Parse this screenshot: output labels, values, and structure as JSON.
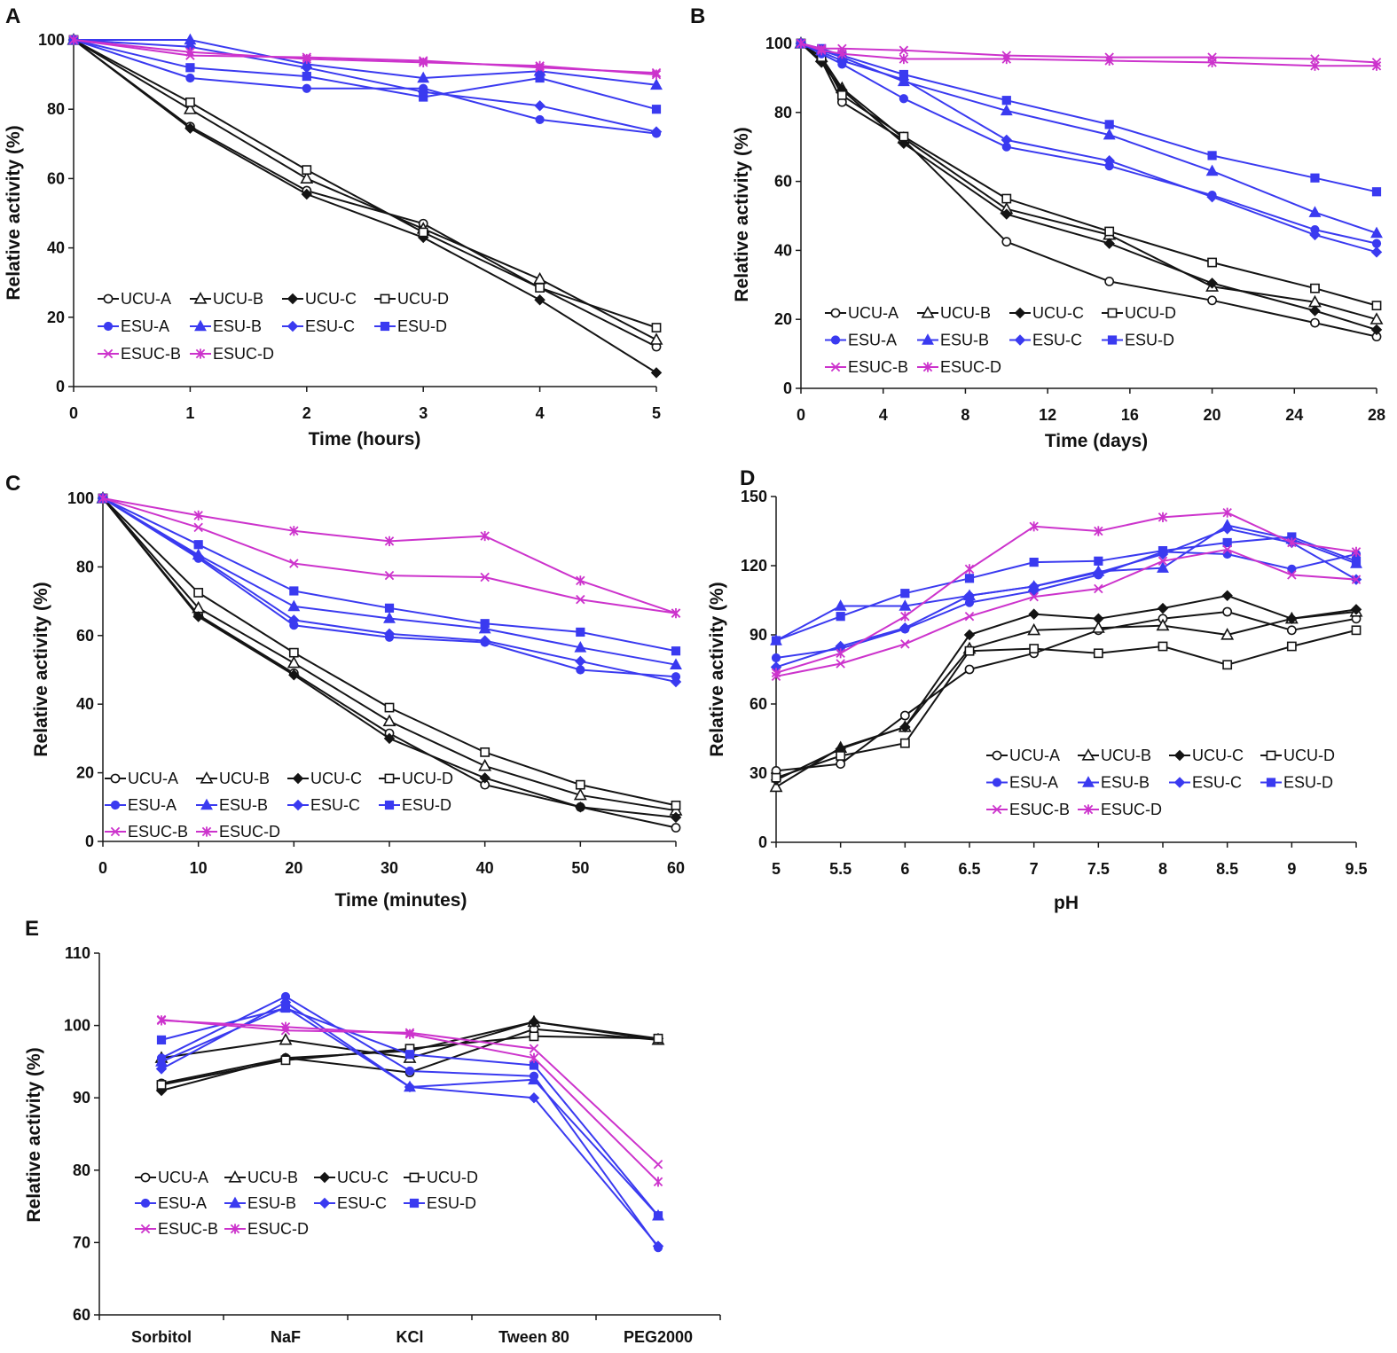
{
  "chart_data": [
    {
      "panel": "A",
      "type": "line",
      "xlabel": "Time (hours)",
      "ylabel": "Relative activity (%)",
      "x": [
        0,
        1,
        2,
        3,
        4,
        5
      ],
      "xlim": [
        0,
        5
      ],
      "ylim": [
        0,
        100
      ],
      "xticks": [
        0,
        1,
        2,
        3,
        4,
        5
      ],
      "yticks": [
        0,
        20,
        40,
        60,
        80,
        100
      ],
      "legend": "lower-left",
      "series": [
        {
          "name": "UCU-A",
          "values": [
            100,
            75,
            56.5,
            47,
            28.5,
            11.5
          ]
        },
        {
          "name": "UCU-B",
          "values": [
            100,
            80,
            60,
            45.5,
            31,
            13.5
          ]
        },
        {
          "name": "UCU-C",
          "values": [
            100,
            74.5,
            55.5,
            43,
            25,
            4
          ]
        },
        {
          "name": "UCU-D",
          "values": [
            100,
            82,
            62.5,
            44.5,
            28.5,
            17
          ]
        },
        {
          "name": "ESU-A",
          "values": [
            100,
            89,
            86,
            86,
            77,
            73
          ]
        },
        {
          "name": "ESU-B",
          "values": [
            100,
            100,
            93,
            89,
            91,
            87
          ]
        },
        {
          "name": "ESU-C",
          "values": [
            100,
            98,
            92,
            85,
            81,
            73.5
          ]
        },
        {
          "name": "ESU-D",
          "values": [
            100,
            92,
            89.5,
            83.5,
            89,
            80
          ]
        },
        {
          "name": "ESUC-B",
          "values": [
            100,
            95.5,
            95,
            94,
            92,
            90.5
          ]
        },
        {
          "name": "ESUC-D",
          "values": [
            100,
            96.5,
            94.5,
            93.5,
            92.5,
            90
          ]
        }
      ]
    },
    {
      "panel": "B",
      "type": "line",
      "xlabel": "Time (days)",
      "ylabel": "Relative activity (%)",
      "x": [
        0,
        1,
        2,
        5,
        10,
        15,
        20,
        25,
        28
      ],
      "xlim": [
        0,
        28
      ],
      "ylim": [
        0,
        100
      ],
      "xticks": [
        0,
        4,
        8,
        12,
        16,
        20,
        24,
        28
      ],
      "yticks": [
        0,
        20,
        40,
        60,
        80,
        100
      ],
      "legend": "lower-left",
      "series": [
        {
          "name": "UCU-A",
          "values": [
            100,
            95,
            83,
            72,
            42.5,
            31,
            25.5,
            19,
            15
          ]
        },
        {
          "name": "UCU-B",
          "values": [
            100,
            96,
            87,
            72.5,
            52,
            44.5,
            29.5,
            25,
            20
          ]
        },
        {
          "name": "UCU-C",
          "values": [
            100,
            94.5,
            86.5,
            71,
            50.5,
            42,
            30.5,
            22.5,
            17
          ]
        },
        {
          "name": "UCU-D",
          "values": [
            100,
            96,
            85,
            73,
            55,
            45.5,
            36.5,
            29,
            24
          ]
        },
        {
          "name": "ESU-A",
          "values": [
            100,
            97,
            94,
            84,
            70,
            64.5,
            56,
            46,
            42
          ]
        },
        {
          "name": "ESU-B",
          "values": [
            100,
            98,
            96,
            89,
            80.5,
            73.5,
            63,
            51,
            45
          ]
        },
        {
          "name": "ESU-C",
          "values": [
            100,
            97.5,
            95,
            89.5,
            72,
            66,
            55.5,
            44.5,
            39.5
          ]
        },
        {
          "name": "ESU-D",
          "values": [
            100,
            98.5,
            96.5,
            91,
            83.5,
            76.5,
            67.5,
            61,
            57
          ]
        },
        {
          "name": "ESUC-B",
          "values": [
            100,
            98.5,
            98.5,
            98,
            96.5,
            96,
            96,
            95.5,
            94.5
          ]
        },
        {
          "name": "ESUC-D",
          "values": [
            100,
            98,
            97,
            95.5,
            95.5,
            95,
            94.5,
            93.5,
            93.5
          ]
        }
      ]
    },
    {
      "panel": "C",
      "type": "line",
      "xlabel": "Time (minutes)",
      "ylabel": "Relative activity (%)",
      "x": [
        0,
        10,
        20,
        30,
        40,
        50,
        60
      ],
      "xlim": [
        0,
        60
      ],
      "ylim": [
        0,
        100
      ],
      "xticks": [
        0,
        10,
        20,
        30,
        40,
        50,
        60
      ],
      "yticks": [
        0,
        20,
        40,
        60,
        80,
        100
      ],
      "legend": "lower-left",
      "series": [
        {
          "name": "UCU-A",
          "values": [
            100,
            66,
            49,
            31.5,
            16.5,
            10,
            4
          ]
        },
        {
          "name": "UCU-B",
          "values": [
            100,
            68,
            52,
            35,
            22,
            13.5,
            9
          ]
        },
        {
          "name": "UCU-C",
          "values": [
            100,
            65.5,
            48.5,
            30,
            18.5,
            10,
            7
          ]
        },
        {
          "name": "UCU-D",
          "values": [
            100,
            72.5,
            55,
            39,
            26,
            16.5,
            10.5
          ]
        },
        {
          "name": "ESU-A",
          "values": [
            100,
            82.5,
            63,
            59.5,
            58,
            50,
            48
          ]
        },
        {
          "name": "ESU-B",
          "values": [
            100,
            83.5,
            68.5,
            65,
            62,
            56.5,
            51.5
          ]
        },
        {
          "name": "ESU-C",
          "values": [
            100,
            83,
            64.5,
            60.5,
            58.5,
            52.5,
            46.5
          ]
        },
        {
          "name": "ESU-D",
          "values": [
            100,
            86.5,
            73,
            68,
            63.5,
            61,
            55.5
          ]
        },
        {
          "name": "ESUC-B",
          "values": [
            100,
            91.5,
            81,
            77.5,
            77,
            70.5,
            66.5
          ]
        },
        {
          "name": "ESUC-D",
          "values": [
            100,
            95,
            90.5,
            87.5,
            89,
            76,
            66.5
          ]
        }
      ]
    },
    {
      "panel": "D",
      "type": "line",
      "xlabel": "pH",
      "ylabel": "Relative activity (%)",
      "x": [
        5,
        5.5,
        6,
        6.5,
        7,
        7.5,
        8,
        8.5,
        9,
        9.5
      ],
      "xlim": [
        5,
        9.5
      ],
      "ylim": [
        0,
        150
      ],
      "xticks": [
        5,
        5.5,
        6,
        6.5,
        7,
        7.5,
        8,
        8.5,
        9,
        9.5
      ],
      "yticks": [
        0,
        30,
        60,
        90,
        120,
        150
      ],
      "legend": "lower-right",
      "series": [
        {
          "name": "UCU-A",
          "values": [
            31,
            34,
            55,
            75,
            82,
            92,
            97,
            100,
            92,
            97
          ]
        },
        {
          "name": "UCU-B",
          "values": [
            24,
            41,
            50,
            84,
            92,
            93,
            94,
            90,
            97,
            100
          ]
        },
        {
          "name": "UCU-C",
          "values": [
            27,
            40.5,
            50,
            90,
            99,
            97,
            101.5,
            107,
            97,
            101
          ]
        },
        {
          "name": "UCU-D",
          "values": [
            28,
            37.5,
            43,
            83,
            84,
            82,
            85,
            77,
            85,
            92
          ]
        },
        {
          "name": "ESU-A",
          "values": [
            80,
            84,
            92.5,
            104,
            109,
            116,
            126,
            125,
            118.5,
            125
          ]
        },
        {
          "name": "ESU-B",
          "values": [
            87.5,
            102.5,
            102.5,
            107,
            111,
            117.5,
            119,
            137.5,
            131.5,
            121
          ]
        },
        {
          "name": "ESU-C",
          "values": [
            76,
            85,
            93,
            107,
            111,
            117,
            125,
            136,
            130,
            114
          ]
        },
        {
          "name": "ESU-D",
          "values": [
            87.5,
            98,
            108,
            114.5,
            121.5,
            122,
            126.5,
            130,
            132.5,
            122
          ]
        },
        {
          "name": "ESUC-B",
          "values": [
            72,
            77.5,
            86,
            98,
            106.5,
            110,
            122,
            127,
            116,
            114
          ]
        },
        {
          "name": "ESUC-D",
          "values": [
            73.5,
            82,
            98,
            118.5,
            137,
            135,
            141,
            143,
            130,
            126
          ]
        }
      ]
    },
    {
      "panel": "E",
      "type": "line",
      "ylabel": "Relative activity (%)",
      "categories": [
        "Sorbitol",
        "NaF",
        "KCl",
        "Tween 80",
        "PEG2000"
      ],
      "ylim": [
        60,
        110
      ],
      "yticks": [
        60,
        70,
        80,
        90,
        100,
        110
      ],
      "legend": "lower-left",
      "series": [
        {
          "name": "UCU-A",
          "values": [
            92,
            95.5,
            93.5,
            99.5,
            98
          ]
        },
        {
          "name": "UCU-B",
          "values": [
            95.5,
            98,
            95.5,
            100.5,
            98
          ]
        },
        {
          "name": "UCU-C",
          "values": [
            91,
            95.5,
            96.5,
            100.5,
            98.2
          ]
        },
        {
          "name": "UCU-D",
          "values": [
            91.8,
            95.2,
            96.8,
            98.5,
            98.2
          ]
        },
        {
          "name": "ESU-A",
          "values": [
            95.5,
            104,
            93.7,
            93,
            69.3
          ]
        },
        {
          "name": "ESU-B",
          "values": [
            95,
            102.5,
            91.5,
            92.5,
            73.7
          ]
        },
        {
          "name": "ESU-C",
          "values": [
            94,
            103.2,
            91.5,
            90,
            69.5
          ]
        },
        {
          "name": "ESU-D",
          "values": [
            98,
            102.4,
            96,
            94.5,
            73.7
          ]
        },
        {
          "name": "ESUC-B",
          "values": [
            100.8,
            99.3,
            99,
            96.8,
            80.8
          ]
        },
        {
          "name": "ESUC-D",
          "values": [
            100.7,
            99.8,
            98.8,
            95.5,
            78.4
          ]
        }
      ]
    }
  ]
}
